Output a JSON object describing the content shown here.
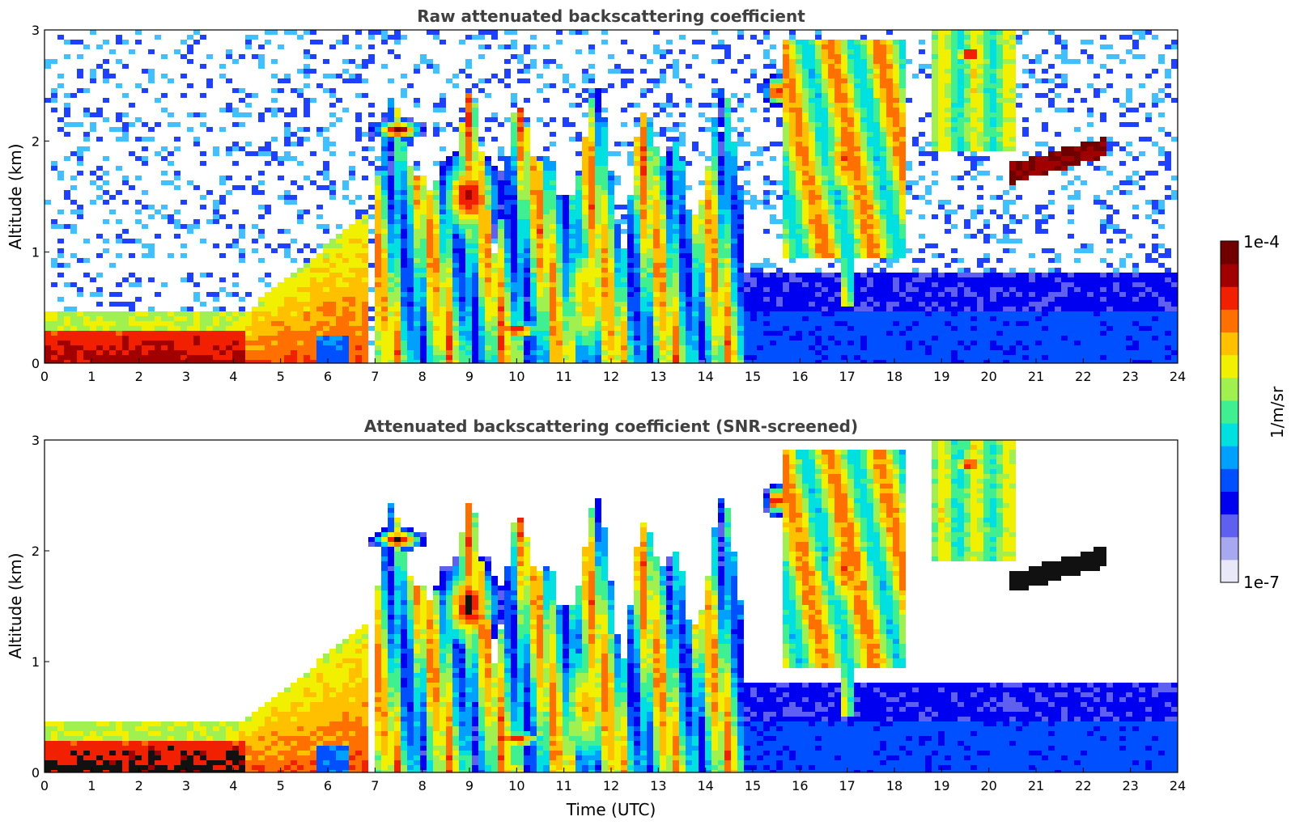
{
  "colormap": [
    "#e8e8f8",
    "#a8a8f0",
    "#6060f0",
    "#0000f0",
    "#0050ff",
    "#00a0ff",
    "#00e0e0",
    "#40f090",
    "#a0f050",
    "#f0f000",
    "#ffc000",
    "#ff7000",
    "#f02000",
    "#a00000",
    "#700000"
  ],
  "chart_data": [
    {
      "type": "heatmap",
      "title": "Raw attenuated backscattering coefficient",
      "xlabel": "",
      "ylabel": "Altitude (km)",
      "xlim": [
        0,
        24
      ],
      "ylim": [
        0,
        3
      ],
      "xticks": [
        "0",
        "1",
        "2",
        "3",
        "4",
        "5",
        "6",
        "7",
        "8",
        "9",
        "10",
        "11",
        "12",
        "13",
        "14",
        "15",
        "16",
        "17",
        "18",
        "19",
        "20",
        "21",
        "22",
        "23",
        "24"
      ],
      "yticks": [
        "0",
        "1",
        "2",
        "3"
      ],
      "features": [
        {
          "name": "boundary layer aerosol",
          "t": [
            0,
            4.3
          ],
          "alt": [
            0,
            0.4
          ],
          "level": "high"
        },
        {
          "name": "rising aerosol plume",
          "t": [
            4.3,
            6.5
          ],
          "alt": [
            0,
            1.3
          ],
          "level": "high"
        },
        {
          "name": "cloud layer",
          "t": [
            8.3,
            9.6
          ],
          "alt": [
            1.2,
            1.9
          ],
          "level": "high"
        },
        {
          "name": "elevated cloud",
          "t": [
            7.0,
            8.0
          ],
          "alt": [
            2.0,
            2.2
          ],
          "level": "very high"
        },
        {
          "name": "convective column",
          "t": [
            15.8,
            18.0
          ],
          "alt": [
            0.9,
            2.9
          ],
          "level": "medium-high"
        },
        {
          "name": "elevated aerosol layer",
          "t": [
            20.4,
            22.5
          ],
          "alt": [
            1.6,
            2.0
          ],
          "level": "very high"
        },
        {
          "name": "clean boundary layer",
          "t": [
            14.7,
            24
          ],
          "alt": [
            0,
            0.5
          ],
          "level": "low"
        }
      ]
    },
    {
      "type": "heatmap",
      "title": "Attenuated backscattering coefficient (SNR-screened)",
      "xlabel": "Time (UTC)",
      "ylabel": "Altitude (km)",
      "xlim": [
        0,
        24
      ],
      "ylim": [
        0,
        3
      ],
      "xticks": [
        "0",
        "1",
        "2",
        "3",
        "4",
        "5",
        "6",
        "7",
        "8",
        "9",
        "10",
        "11",
        "12",
        "13",
        "14",
        "15",
        "16",
        "17",
        "18",
        "19",
        "20",
        "21",
        "22",
        "23",
        "24"
      ],
      "yticks": [
        "0",
        "1",
        "2",
        "3"
      ],
      "features": [
        {
          "name": "saturated boundary layer",
          "t": [
            0,
            4.3
          ],
          "alt": [
            0,
            0.35
          ],
          "level": "saturated"
        },
        {
          "name": "screened cloud region",
          "t": [
            7,
            15
          ],
          "alt": [
            0,
            2.4
          ],
          "level": "medium-high"
        },
        {
          "name": "convective column",
          "t": [
            15.8,
            18.0
          ],
          "alt": [
            0.9,
            3.0
          ],
          "level": "medium-high"
        },
        {
          "name": "elevated aerosol layer",
          "t": [
            20.4,
            22.5
          ],
          "alt": [
            1.6,
            2.0
          ],
          "level": "saturated"
        },
        {
          "name": "clean boundary layer",
          "t": [
            14.7,
            24
          ],
          "alt": [
            0,
            0.8
          ],
          "level": "low"
        }
      ]
    }
  ],
  "colorbar": {
    "label": "1/m/sr",
    "max_label": "1e-4",
    "min_label": "1e-7"
  }
}
